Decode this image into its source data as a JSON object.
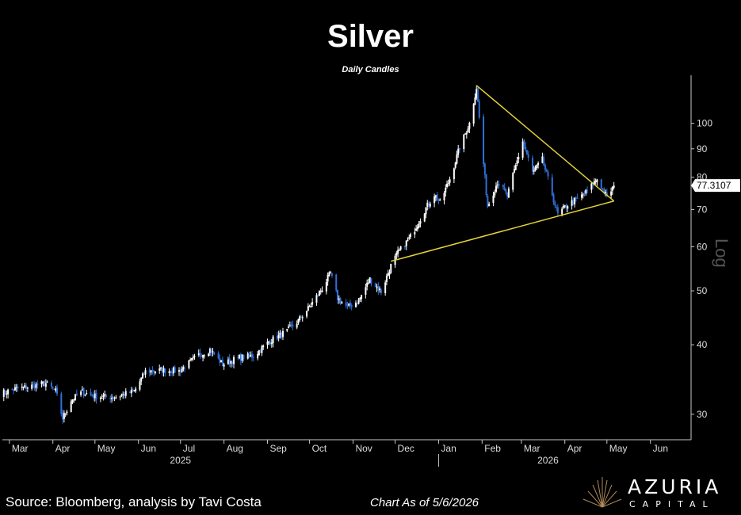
{
  "chart_data": {
    "type": "candlestick",
    "title": "Silver",
    "subtitle": "Daily Candles",
    "y_scale": "log",
    "y_scale_label": "Log",
    "ylim": [
      27,
      122
    ],
    "xlim": [
      "2025-02-24",
      "2026-06-30"
    ],
    "y_ticks": [
      30,
      40,
      50,
      60,
      70,
      80,
      90,
      100
    ],
    "month_ticks": [
      {
        "label": "Mar",
        "date": "2025-03-01"
      },
      {
        "label": "Apr",
        "date": "2025-04-01"
      },
      {
        "label": "May",
        "date": "2025-05-01"
      },
      {
        "label": "Jun",
        "date": "2025-06-01"
      },
      {
        "label": "Jul",
        "date": "2025-07-01"
      },
      {
        "label": "Aug",
        "date": "2025-08-01"
      },
      {
        "label": "Sep",
        "date": "2025-09-01"
      },
      {
        "label": "Oct",
        "date": "2025-10-01"
      },
      {
        "label": "Nov",
        "date": "2025-11-01"
      },
      {
        "label": "Dec",
        "date": "2025-12-01"
      },
      {
        "label": "Jan",
        "date": "2026-01-01"
      },
      {
        "label": "Feb",
        "date": "2026-02-01"
      },
      {
        "label": "Mar",
        "date": "2026-03-01"
      },
      {
        "label": "Apr",
        "date": "2026-04-01"
      },
      {
        "label": "May",
        "date": "2026-05-01"
      },
      {
        "label": "Jun",
        "date": "2026-06-01"
      }
    ],
    "year_labels": [
      {
        "label": "2025",
        "date": "2025-07-01"
      },
      {
        "label": "2026",
        "date": "2026-03-20"
      }
    ],
    "year_divider": "2026-01-01",
    "last_price_label": "77.3107",
    "last_price": 77.31,
    "path": [
      [
        "2025-02-24",
        32.8
      ],
      [
        "2025-03-05",
        33.3
      ],
      [
        "2025-03-14",
        33.6
      ],
      [
        "2025-03-27",
        34.1
      ],
      [
        "2025-04-03",
        33.0
      ],
      [
        "2025-04-08",
        29.5
      ],
      [
        "2025-04-14",
        31.8
      ],
      [
        "2025-04-22",
        32.9
      ],
      [
        "2025-05-01",
        32.3
      ],
      [
        "2025-05-15",
        32.2
      ],
      [
        "2025-05-29",
        33.0
      ],
      [
        "2025-06-06",
        35.8
      ],
      [
        "2025-06-18",
        36.0
      ],
      [
        "2025-06-30",
        35.9
      ],
      [
        "2025-07-14",
        38.3
      ],
      [
        "2025-07-22",
        39.2
      ],
      [
        "2025-07-31",
        36.9
      ],
      [
        "2025-08-12",
        37.9
      ],
      [
        "2025-08-22",
        38.2
      ],
      [
        "2025-09-02",
        40.5
      ],
      [
        "2025-09-15",
        42.3
      ],
      [
        "2025-09-23",
        44.2
      ],
      [
        "2025-10-01",
        46.8
      ],
      [
        "2025-10-10",
        50.5
      ],
      [
        "2025-10-16",
        53.8
      ],
      [
        "2025-10-21",
        48.5
      ],
      [
        "2025-10-28",
        46.7
      ],
      [
        "2025-11-05",
        48.0
      ],
      [
        "2025-11-13",
        52.5
      ],
      [
        "2025-11-21",
        49.8
      ],
      [
        "2025-11-28",
        55.5
      ],
      [
        "2025-12-03",
        58.5
      ],
      [
        "2025-12-12",
        62.5
      ],
      [
        "2025-12-22",
        69.8
      ],
      [
        "2025-12-29",
        74.5
      ],
      [
        "2026-01-02",
        72.0
      ],
      [
        "2026-01-09",
        79.5
      ],
      [
        "2026-01-16",
        90.5
      ],
      [
        "2026-01-23",
        100.0
      ],
      [
        "2026-01-28",
        116.0
      ],
      [
        "2026-02-02",
        84.5
      ],
      [
        "2026-02-05",
        71.0
      ],
      [
        "2026-02-12",
        78.5
      ],
      [
        "2026-02-19",
        74.0
      ],
      [
        "2026-03-02",
        93.0
      ],
      [
        "2026-03-09",
        81.5
      ],
      [
        "2026-03-16",
        86.0
      ],
      [
        "2026-03-23",
        74.5
      ],
      [
        "2026-03-27",
        68.5
      ],
      [
        "2026-04-03",
        71.5
      ],
      [
        "2026-04-10",
        73.0
      ],
      [
        "2026-04-17",
        75.5
      ],
      [
        "2026-04-24",
        79.5
      ],
      [
        "2026-04-29",
        75.5
      ],
      [
        "2026-05-01",
        73.5
      ],
      [
        "2026-05-06",
        77.31
      ]
    ],
    "trendlines": [
      {
        "name": "upper",
        "points": [
          [
            "2026-01-28",
            117.0
          ],
          [
            "2026-05-06",
            72.5
          ]
        ]
      },
      {
        "name": "lower",
        "points": [
          [
            "2025-11-28",
            56.5
          ],
          [
            "2026-05-06",
            72.5
          ]
        ]
      }
    ]
  },
  "colors": {
    "background": "#000000",
    "up": "#ffffff",
    "down": "#2f6fd6",
    "trendline": "#e6d23a",
    "axis": "#c8c8c8",
    "log_label": "#555555"
  },
  "footer": {
    "source": "Source: Bloomberg, analysis by Tavi Costa",
    "as_of": "Chart As of 5/6/2026",
    "logo_name": "AZURIA",
    "logo_sub": "CAPITAL",
    "logo_icon": "azuria-arc-icon"
  }
}
